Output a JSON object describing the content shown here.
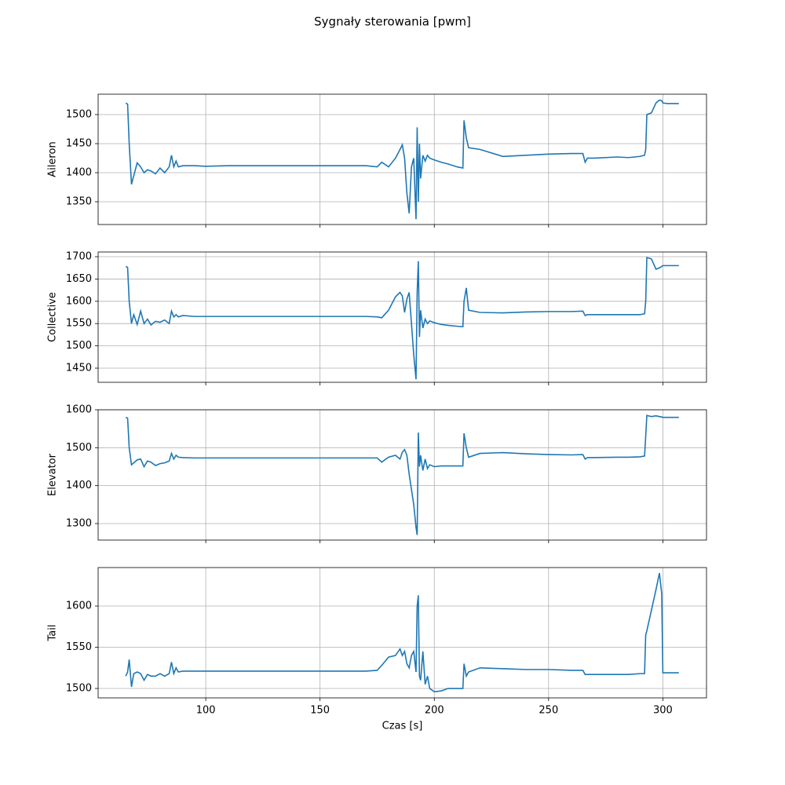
{
  "title": "Sygnały sterowania [pwm]",
  "chart_data": [
    {
      "type": "line",
      "ylabel": "Aileron",
      "grid": true,
      "xlim": [
        52.9,
        319.1
      ],
      "xticks": [
        100,
        150,
        200,
        250,
        300
      ],
      "ylim": [
        1310.8,
        1535.1
      ],
      "yticks": [
        1350,
        1400,
        1450,
        1500
      ],
      "x": [
        65,
        65.8,
        66.5,
        67.5,
        68.5,
        70,
        71.5,
        73,
        74.5,
        76,
        78,
        80,
        82,
        84,
        85,
        86,
        87,
        88,
        90,
        95,
        100,
        110,
        120,
        130,
        140,
        150,
        160,
        170,
        175,
        177,
        180,
        183,
        185,
        186,
        187,
        188,
        189,
        190,
        191,
        192,
        192.5,
        193,
        193.5,
        194,
        195,
        196,
        197,
        198,
        200,
        203,
        206,
        210,
        212.5,
        213,
        214,
        215,
        220,
        230,
        240,
        250,
        260,
        265,
        266,
        267,
        270,
        280,
        285,
        290,
        292,
        292.5,
        293,
        295,
        297,
        298.5,
        299.5,
        300,
        302,
        307
      ],
      "series": [
        {
          "name": "Aileron",
          "color": "#1f77b4",
          "values": [
            1520,
            1518,
            1450,
            1380,
            1395,
            1417,
            1410,
            1400,
            1405,
            1403,
            1398,
            1408,
            1400,
            1410,
            1430,
            1410,
            1420,
            1410,
            1412,
            1412,
            1411,
            1412,
            1412,
            1412,
            1412,
            1412,
            1412,
            1412,
            1410,
            1418,
            1410,
            1425,
            1440,
            1448,
            1425,
            1365,
            1330,
            1410,
            1425,
            1320,
            1478,
            1350,
            1450,
            1390,
            1430,
            1420,
            1430,
            1425,
            1422,
            1418,
            1415,
            1410,
            1408,
            1490,
            1460,
            1443,
            1440,
            1428,
            1430,
            1432,
            1433,
            1433,
            1418,
            1425,
            1425,
            1427,
            1426,
            1428,
            1430,
            1440,
            1500,
            1503,
            1520,
            1525,
            1524,
            1520,
            1519,
            1519
          ]
        }
      ]
    },
    {
      "type": "line",
      "ylabel": "Collective",
      "grid": true,
      "xlim": [
        52.9,
        319.1
      ],
      "xticks": [
        100,
        150,
        200,
        250,
        300
      ],
      "ylim": [
        1418.3,
        1710.6
      ],
      "yticks": [
        1450,
        1500,
        1550,
        1600,
        1650,
        1700
      ],
      "x": [
        65,
        65.8,
        66.5,
        67.5,
        68.5,
        70,
        71.5,
        73,
        74.5,
        76,
        78,
        80,
        82,
        84,
        85,
        86,
        87,
        88,
        90,
        95,
        100,
        110,
        120,
        130,
        140,
        150,
        160,
        170,
        175,
        177,
        180,
        183,
        185,
        186,
        187,
        188,
        189,
        190,
        191,
        192,
        192.5,
        193,
        193.5,
        194,
        195,
        196,
        197,
        198,
        200,
        203,
        206,
        210,
        212.5,
        213,
        214,
        215,
        220,
        230,
        240,
        250,
        260,
        265,
        266,
        267,
        270,
        280,
        285,
        290,
        292,
        292.5,
        293,
        295,
        297,
        298.5,
        299.5,
        300,
        302,
        307
      ],
      "series": [
        {
          "name": "Collective",
          "color": "#1f77b4",
          "values": [
            1678,
            1676,
            1600,
            1550,
            1570,
            1548,
            1578,
            1550,
            1560,
            1547,
            1555,
            1553,
            1558,
            1550,
            1578,
            1565,
            1570,
            1565,
            1568,
            1566,
            1566,
            1566,
            1566,
            1566,
            1566,
            1566,
            1566,
            1566,
            1565,
            1563,
            1580,
            1610,
            1620,
            1612,
            1575,
            1605,
            1620,
            1550,
            1480,
            1425,
            1620,
            1690,
            1520,
            1580,
            1540,
            1560,
            1550,
            1556,
            1552,
            1548,
            1546,
            1544,
            1543,
            1600,
            1630,
            1580,
            1575,
            1574,
            1576,
            1577,
            1577,
            1578,
            1568,
            1570,
            1570,
            1570,
            1570,
            1570,
            1572,
            1600,
            1698,
            1695,
            1672,
            1675,
            1678,
            1680,
            1680,
            1680
          ]
        }
      ]
    },
    {
      "type": "line",
      "ylabel": "Elevator",
      "grid": true,
      "xlim": [
        52.9,
        319.1
      ],
      "xticks": [
        100,
        150,
        200,
        250,
        300
      ],
      "ylim": [
        1256.5,
        1600
      ],
      "yticks": [
        1300,
        1400,
        1500,
        1600
      ],
      "x": [
        65,
        65.8,
        66.5,
        67.5,
        68.5,
        70,
        71.5,
        73,
        74.5,
        76,
        78,
        80,
        82,
        84,
        85,
        86,
        87,
        88,
        90,
        95,
        100,
        110,
        120,
        130,
        140,
        150,
        160,
        170,
        175,
        177,
        180,
        183,
        185,
        186,
        187,
        188,
        189,
        190,
        191,
        192,
        192.5,
        193,
        193.5,
        194,
        195,
        196,
        197,
        198,
        200,
        203,
        206,
        210,
        212.5,
        213,
        214,
        215,
        220,
        230,
        240,
        250,
        260,
        265,
        266,
        267,
        270,
        280,
        285,
        290,
        292,
        292.5,
        293,
        295,
        297,
        298.5,
        299.5,
        300,
        302,
        307
      ],
      "series": [
        {
          "name": "Elevator",
          "color": "#1f77b4",
          "values": [
            1580,
            1578,
            1500,
            1455,
            1460,
            1468,
            1470,
            1450,
            1465,
            1462,
            1453,
            1458,
            1460,
            1465,
            1485,
            1470,
            1480,
            1475,
            1474,
            1473,
            1473,
            1473,
            1473,
            1473,
            1473,
            1473,
            1473,
            1473,
            1473,
            1462,
            1475,
            1480,
            1470,
            1488,
            1495,
            1480,
            1430,
            1390,
            1350,
            1290,
            1270,
            1540,
            1450,
            1480,
            1440,
            1470,
            1445,
            1455,
            1450,
            1452,
            1452,
            1452,
            1452,
            1538,
            1500,
            1475,
            1485,
            1487,
            1484,
            1482,
            1481,
            1482,
            1470,
            1474,
            1474,
            1475,
            1475,
            1476,
            1478,
            1530,
            1585,
            1582,
            1584,
            1582,
            1581,
            1580,
            1580,
            1580
          ]
        }
      ]
    },
    {
      "type": "line",
      "ylabel": "Tail",
      "xlabel": "Czas [s]",
      "grid": true,
      "xlim": [
        52.9,
        319.1
      ],
      "xticks": [
        100,
        150,
        200,
        250,
        300
      ],
      "ylim": [
        1488.6,
        1646.7
      ],
      "yticks": [
        1500,
        1550,
        1600
      ],
      "x": [
        65,
        65.8,
        66.5,
        67.5,
        68.5,
        70,
        71.5,
        73,
        74.5,
        76,
        78,
        80,
        82,
        84,
        85,
        86,
        87,
        88,
        90,
        95,
        100,
        110,
        120,
        130,
        140,
        150,
        160,
        170,
        175,
        177,
        180,
        183,
        185,
        186,
        187,
        188,
        189,
        190,
        191,
        192,
        192.5,
        193,
        193.5,
        194,
        195,
        196,
        197,
        198,
        200,
        203,
        206,
        210,
        212.5,
        213,
        214,
        215,
        220,
        230,
        240,
        250,
        260,
        265,
        266,
        267,
        270,
        280,
        285,
        290,
        292,
        292.5,
        293,
        295,
        297,
        298.5,
        299.5,
        300,
        302,
        307
      ],
      "series": [
        {
          "name": "Tail",
          "color": "#1f77b4",
          "values": [
            1515,
            1520,
            1535,
            1502,
            1518,
            1520,
            1518,
            1510,
            1517,
            1515,
            1515,
            1518,
            1515,
            1518,
            1532,
            1518,
            1525,
            1520,
            1521,
            1521,
            1521,
            1521,
            1521,
            1521,
            1521,
            1521,
            1521,
            1521,
            1522,
            1528,
            1538,
            1540,
            1548,
            1540,
            1545,
            1530,
            1525,
            1540,
            1545,
            1520,
            1600,
            1613,
            1515,
            1510,
            1545,
            1505,
            1515,
            1500,
            1496,
            1497,
            1500,
            1500,
            1500,
            1530,
            1515,
            1520,
            1525,
            1524,
            1523,
            1523,
            1522,
            1522,
            1517,
            1517,
            1517,
            1517,
            1517,
            1518,
            1518,
            1565,
            1570,
            1595,
            1620,
            1640,
            1615,
            1519,
            1519,
            1519
          ]
        }
      ]
    }
  ]
}
